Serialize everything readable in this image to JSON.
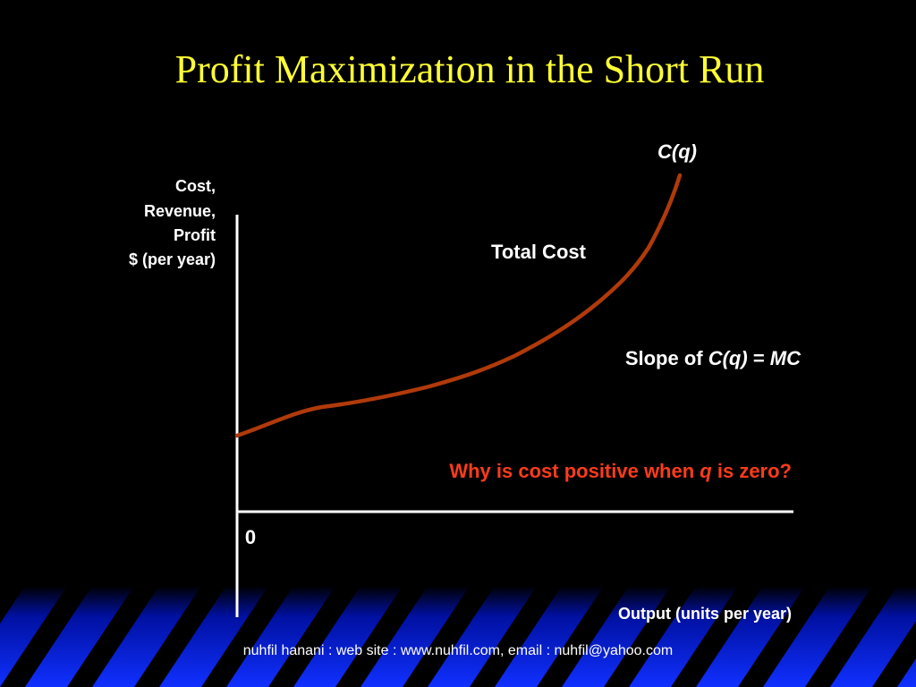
{
  "title": "Profit Maximization in the Short Run",
  "y_axis_label": [
    "Cost,",
    "Revenue,",
    "Profit",
    "$ (per year)"
  ],
  "curve_label": "C(q)",
  "curve_name": "Total Cost",
  "slope_note": {
    "prefix": "Slope of ",
    "function": "C(q)",
    "equals": " = ",
    "result": "MC"
  },
  "question": {
    "before": "Why is cost positive when ",
    "variable": "q",
    "after": " is zero?"
  },
  "origin_label": "0",
  "x_axis_label": "Output (units per year)",
  "footer": "nuhfil hanani : web site : www.nuhfil.com, email : nuhfil@yahoo.com"
}
